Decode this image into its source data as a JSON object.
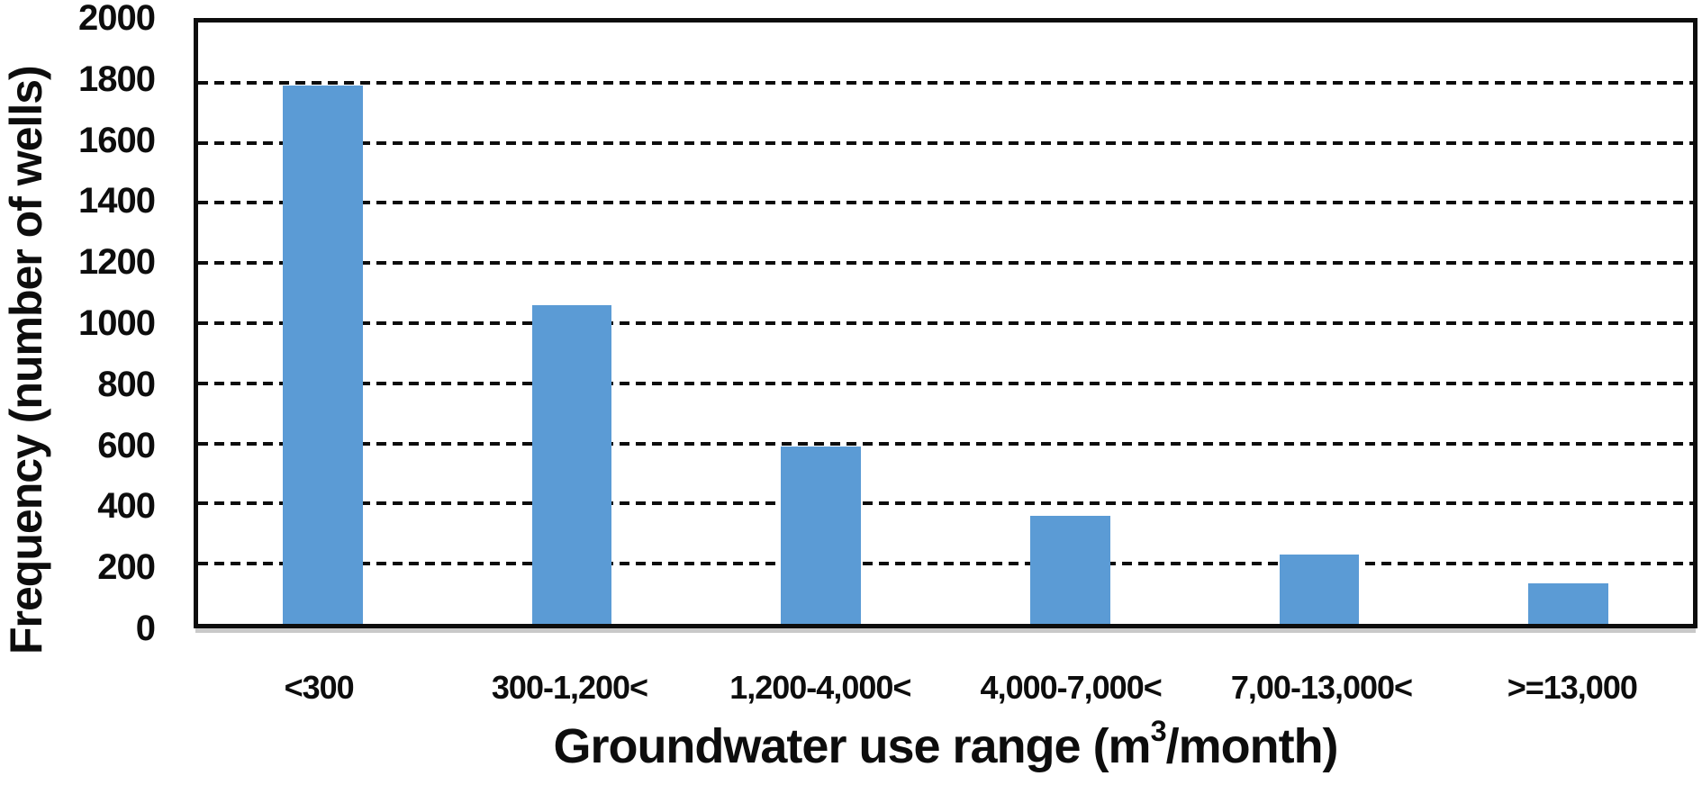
{
  "chart_data": {
    "type": "bar",
    "title": "",
    "xlabel": "Groundwater use range (m³/month)",
    "xlabel_parts": {
      "prefix": "Groundwater use range (m",
      "superscript": "3",
      "suffix": "/month)"
    },
    "ylabel": "Frequency (number of wells)",
    "categories": [
      "<300",
      "300-1,200<",
      "1,200-4,000<",
      "4,000-7,000<",
      "7,00-13,000<",
      ">=13,000"
    ],
    "values": [
      1790,
      1060,
      590,
      360,
      230,
      135
    ],
    "ylim": [
      0,
      2000
    ],
    "y_ticks": [
      0,
      200,
      400,
      600,
      800,
      1000,
      1200,
      1400,
      1600,
      1800,
      2000
    ],
    "grid": "horizontal-dashed",
    "legend_position": "none",
    "bar_color": "#5B9BD5",
    "axis_color": "#0d0d0d",
    "text_color": "#0d0d0d",
    "background_color": "#ffffff"
  }
}
